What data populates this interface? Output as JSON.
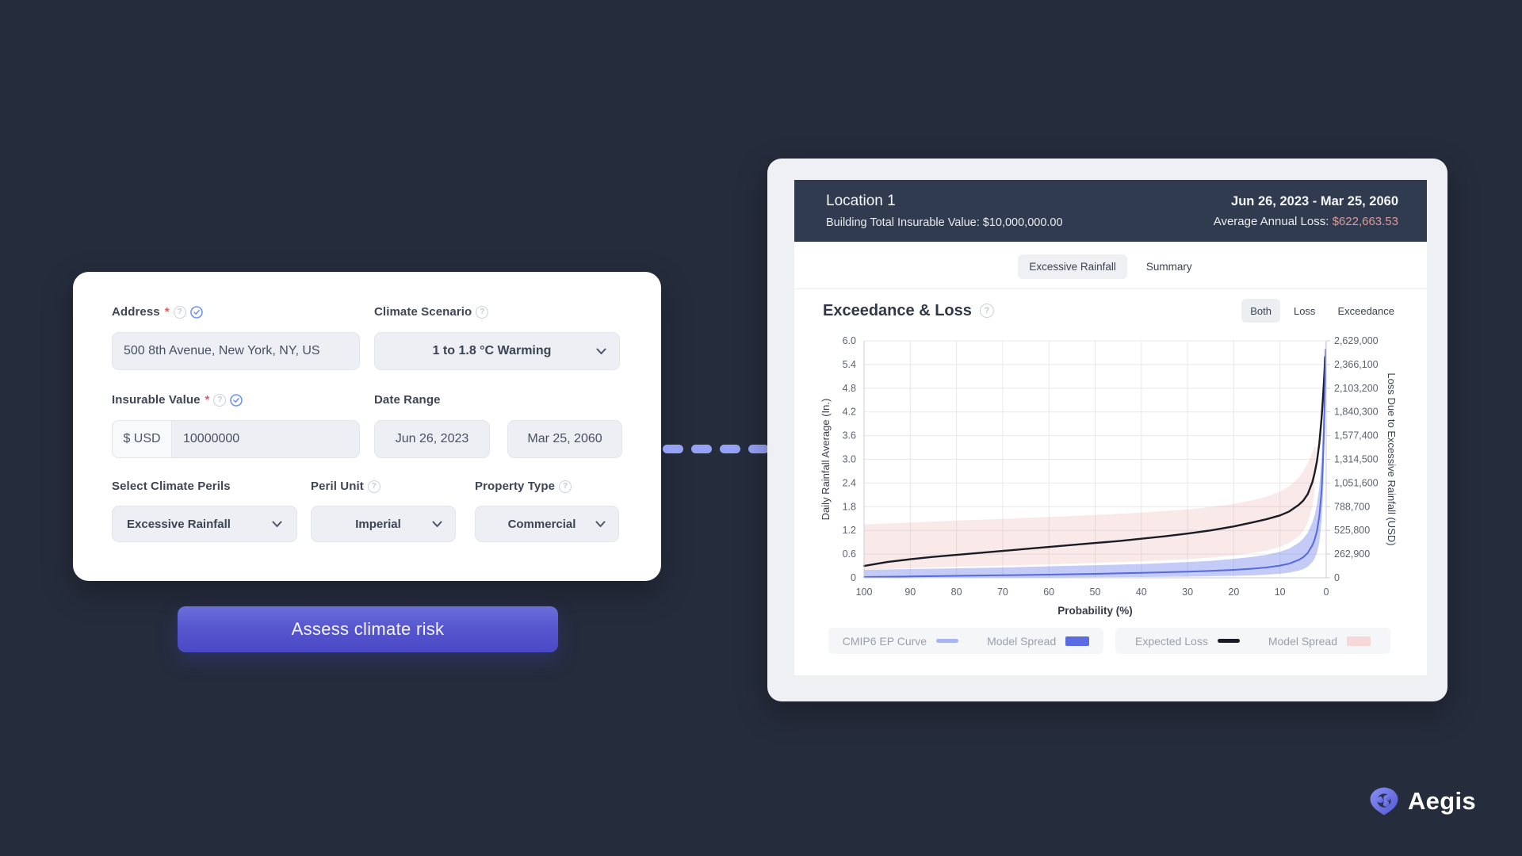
{
  "form": {
    "address": {
      "label": "Address",
      "required": "*",
      "value": "500 8th Avenue, New York, NY, US"
    },
    "climate_scenario": {
      "label": "Climate Scenario",
      "value": "1 to 1.8 °C Warming"
    },
    "insurable_value": {
      "label": "Insurable Value",
      "required": "*",
      "currency": "$ USD",
      "value": "10000000"
    },
    "date_range": {
      "label": "Date Range",
      "start": "Jun 26, 2023",
      "end": "Mar 25, 2060"
    },
    "climate_perils": {
      "label": "Select Climate Perils",
      "value": "Excessive Rainfall"
    },
    "peril_unit": {
      "label": "Peril Unit",
      "value": "Imperial"
    },
    "property_type": {
      "label": "Property Type",
      "value": "Commercial"
    },
    "submit_label": "Assess climate risk"
  },
  "result": {
    "header": {
      "title": "Location 1",
      "subtitle": "Building Total Insurable Value: $10,000,000.00",
      "date_range": "Jun 26, 2023 - Mar 25, 2060",
      "aal_label": "Average Annual Loss: ",
      "aal_value": "$622,663.53"
    },
    "tabs": [
      {
        "label": "Excessive Rainfall",
        "active": true
      },
      {
        "label": "Summary",
        "active": false
      }
    ],
    "section_title": "Exceedance & Loss",
    "view_toggle": [
      {
        "label": "Both",
        "active": true
      },
      {
        "label": "Loss",
        "active": false
      },
      {
        "label": "Exceedance",
        "active": false
      }
    ],
    "legend": {
      "cmip6": {
        "curve_label": "CMIP6 EP Curve",
        "curve_color": "#a9b4f2",
        "spread_label": "Model Spread",
        "spread_color": "#5b6ce2"
      },
      "loss": {
        "curve_label": "Expected Loss",
        "curve_color": "#191c24",
        "spread_label": "Model Spread",
        "spread_color": "#f6d8d8"
      }
    }
  },
  "chart_data": {
    "type": "line",
    "title": "Exceedance & Loss",
    "x_axis": {
      "label": "Probability (%)",
      "min": 0,
      "max": 100,
      "reversed": true,
      "tick_labels": [
        "100",
        "90",
        "80",
        "70",
        "60",
        "50",
        "40",
        "30",
        "20",
        "10",
        "0"
      ]
    },
    "y_left": {
      "label": "Daily Rainfall Average (In.)",
      "min": 0,
      "max": 6,
      "tick_labels": [
        "0",
        "0.6",
        "1.2",
        "1.8",
        "2.4",
        "3.0",
        "3.6",
        "4.2",
        "4.8",
        "5.4",
        "6.0"
      ]
    },
    "y_right": {
      "label": "Loss Due to Excessive Rainfall (USD)",
      "min": 0,
      "max": 2629000,
      "tick_labels": [
        "0",
        "262,900",
        "525,800",
        "788,700",
        "1,051,600",
        "1,314,500",
        "1,577,400",
        "1,840,300",
        "2,103,200",
        "2,366,100",
        "2,629,000"
      ]
    },
    "grid": true,
    "series": [
      {
        "name": "Expected Loss Model Spread",
        "type": "band",
        "fill": "rgba(226,146,146,0.20)",
        "upper": [
          [
            100,
            1.35
          ],
          [
            90,
            1.4
          ],
          [
            80,
            1.45
          ],
          [
            70,
            1.49
          ],
          [
            60,
            1.54
          ],
          [
            50,
            1.59
          ],
          [
            40,
            1.65
          ],
          [
            30,
            1.73
          ],
          [
            25,
            1.79
          ],
          [
            20,
            1.87
          ],
          [
            16,
            1.96
          ],
          [
            13,
            2.05
          ],
          [
            10,
            2.18
          ],
          [
            8,
            2.32
          ],
          [
            6,
            2.52
          ],
          [
            5,
            2.68
          ],
          [
            4,
            2.9
          ],
          [
            3,
            3.18
          ],
          [
            2.5,
            3.32
          ],
          [
            2.2,
            3.3
          ]
        ],
        "lower": [
          [
            100,
            0.2
          ],
          [
            90,
            0.24
          ],
          [
            80,
            0.28
          ],
          [
            70,
            0.31
          ],
          [
            60,
            0.34
          ],
          [
            50,
            0.38
          ],
          [
            40,
            0.42
          ],
          [
            30,
            0.47
          ],
          [
            25,
            0.51
          ],
          [
            20,
            0.57
          ],
          [
            16,
            0.63
          ],
          [
            13,
            0.69
          ],
          [
            10,
            0.78
          ],
          [
            8,
            0.88
          ],
          [
            6,
            1.05
          ],
          [
            5,
            1.18
          ],
          [
            4,
            1.4
          ],
          [
            3,
            1.8
          ],
          [
            2.5,
            2.3
          ],
          [
            2.2,
            3.3
          ]
        ]
      },
      {
        "name": "CMIP6 Model Spread",
        "type": "band",
        "fill": "rgba(104,124,232,0.40)",
        "upper": [
          [
            100,
            0.2
          ],
          [
            90,
            0.22
          ],
          [
            80,
            0.24
          ],
          [
            70,
            0.26
          ],
          [
            60,
            0.29
          ],
          [
            50,
            0.32
          ],
          [
            40,
            0.35
          ],
          [
            30,
            0.4
          ],
          [
            25,
            0.43
          ],
          [
            20,
            0.48
          ],
          [
            16,
            0.53
          ],
          [
            13,
            0.58
          ],
          [
            10,
            0.66
          ],
          [
            8,
            0.74
          ],
          [
            6,
            0.88
          ],
          [
            5,
            0.99
          ],
          [
            4,
            1.14
          ],
          [
            3,
            1.4
          ],
          [
            2.5,
            1.58
          ],
          [
            2,
            1.85
          ],
          [
            1.5,
            2.3
          ],
          [
            1,
            3.05
          ],
          [
            0.7,
            3.8
          ],
          [
            0.5,
            4.5
          ],
          [
            0.35,
            5.15
          ],
          [
            0.25,
            5.6
          ],
          [
            0.15,
            5.95
          ],
          [
            0.1,
            6.0
          ]
        ],
        "lower": [
          [
            100,
            0.0
          ],
          [
            80,
            0.0
          ],
          [
            60,
            0.01
          ],
          [
            40,
            0.02
          ],
          [
            30,
            0.03
          ],
          [
            20,
            0.05
          ],
          [
            16,
            0.06
          ],
          [
            13,
            0.08
          ],
          [
            10,
            0.1
          ],
          [
            8,
            0.13
          ],
          [
            6,
            0.18
          ],
          [
            5,
            0.22
          ],
          [
            4,
            0.28
          ],
          [
            3,
            0.4
          ],
          [
            2.5,
            0.49
          ],
          [
            2,
            0.63
          ],
          [
            1.5,
            0.9
          ],
          [
            1,
            1.45
          ],
          [
            0.7,
            2.05
          ],
          [
            0.5,
            2.8
          ],
          [
            0.35,
            3.6
          ],
          [
            0.25,
            4.35
          ],
          [
            0.15,
            5.1
          ],
          [
            0.1,
            5.45
          ]
        ]
      },
      {
        "name": "Expected Loss",
        "type": "line",
        "color": "#191c24",
        "width": 2.4,
        "points": [
          [
            100,
            0.3
          ],
          [
            95,
            0.4
          ],
          [
            90,
            0.47
          ],
          [
            85,
            0.53
          ],
          [
            80,
            0.58
          ],
          [
            75,
            0.63
          ],
          [
            70,
            0.68
          ],
          [
            65,
            0.73
          ],
          [
            60,
            0.78
          ],
          [
            55,
            0.83
          ],
          [
            50,
            0.88
          ],
          [
            45,
            0.93
          ],
          [
            40,
            0.99
          ],
          [
            35,
            1.05
          ],
          [
            30,
            1.12
          ],
          [
            25,
            1.2
          ],
          [
            20,
            1.3
          ],
          [
            16,
            1.4
          ],
          [
            13,
            1.48
          ],
          [
            10,
            1.58
          ],
          [
            8,
            1.68
          ],
          [
            6,
            1.84
          ],
          [
            5,
            1.95
          ],
          [
            4,
            2.12
          ],
          [
            3,
            2.42
          ],
          [
            2.5,
            2.65
          ],
          [
            2,
            2.95
          ],
          [
            1.5,
            3.4
          ],
          [
            1,
            4.05
          ],
          [
            0.7,
            4.55
          ],
          [
            0.5,
            4.95
          ],
          [
            0.35,
            5.3
          ],
          [
            0.25,
            5.55
          ],
          [
            0.2,
            5.6
          ]
        ]
      },
      {
        "name": "CMIP6 EP Curve",
        "type": "line",
        "color": "#5668e2",
        "width": 2,
        "points": [
          [
            100,
            0.02
          ],
          [
            90,
            0.035
          ],
          [
            80,
            0.05
          ],
          [
            70,
            0.065
          ],
          [
            60,
            0.08
          ],
          [
            50,
            0.1
          ],
          [
            40,
            0.125
          ],
          [
            30,
            0.155
          ],
          [
            25,
            0.175
          ],
          [
            20,
            0.2
          ],
          [
            16,
            0.23
          ],
          [
            13,
            0.26
          ],
          [
            10,
            0.31
          ],
          [
            8,
            0.36
          ],
          [
            6,
            0.45
          ],
          [
            5,
            0.52
          ],
          [
            4,
            0.63
          ],
          [
            3,
            0.82
          ],
          [
            2.5,
            0.97
          ],
          [
            2,
            1.18
          ],
          [
            1.5,
            1.55
          ],
          [
            1,
            2.2
          ],
          [
            0.7,
            2.95
          ],
          [
            0.5,
            3.7
          ],
          [
            0.35,
            4.45
          ],
          [
            0.25,
            5.05
          ],
          [
            0.15,
            5.6
          ],
          [
            0.1,
            5.78
          ]
        ]
      }
    ]
  },
  "logo": {
    "text": "Aegis"
  }
}
